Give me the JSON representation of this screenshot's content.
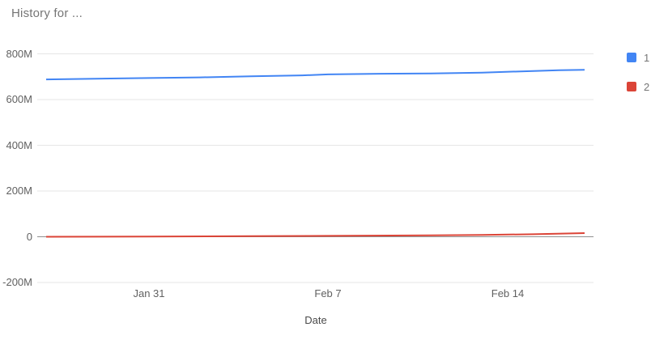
{
  "chart_data": {
    "type": "line",
    "title": "History for ...",
    "xlabel": "Date",
    "ylabel": "",
    "legend_position": "right",
    "x_axis": {
      "domain_days": [
        0,
        21
      ],
      "ticks": [
        {
          "label": "Jan 31",
          "day": 4
        },
        {
          "label": "Feb 7",
          "day": 11
        },
        {
          "label": "Feb 14",
          "day": 18
        }
      ]
    },
    "y_axis": {
      "unit": "M",
      "range_millions": [
        -200,
        800
      ],
      "ticks": [
        {
          "label": "800M",
          "value": 800
        },
        {
          "label": "600M",
          "value": 600
        },
        {
          "label": "400M",
          "value": 400
        },
        {
          "label": "200M",
          "value": 200
        },
        {
          "label": "0",
          "value": 0
        },
        {
          "label": "-200M",
          "value": -200
        }
      ]
    },
    "grid": {
      "gridline_color": "#e6e6e6",
      "baseline_color": "#8f8f8f",
      "grid_on": true
    },
    "series": [
      {
        "name": "1",
        "color": "#4285f4",
        "points_day_valueM": [
          [
            0,
            688
          ],
          [
            4,
            694
          ],
          [
            6,
            697
          ],
          [
            8,
            702
          ],
          [
            10,
            706
          ],
          [
            11,
            710
          ],
          [
            13,
            713
          ],
          [
            15,
            714
          ],
          [
            17,
            718
          ],
          [
            19,
            725
          ],
          [
            20,
            728
          ],
          [
            21,
            730
          ]
        ]
      },
      {
        "name": "2",
        "color": "#db4437",
        "points_day_valueM": [
          [
            0,
            0
          ],
          [
            4,
            1
          ],
          [
            8,
            2.5
          ],
          [
            11,
            4
          ],
          [
            15,
            6
          ],
          [
            17,
            8
          ],
          [
            19,
            11
          ],
          [
            21,
            16
          ]
        ]
      }
    ]
  }
}
